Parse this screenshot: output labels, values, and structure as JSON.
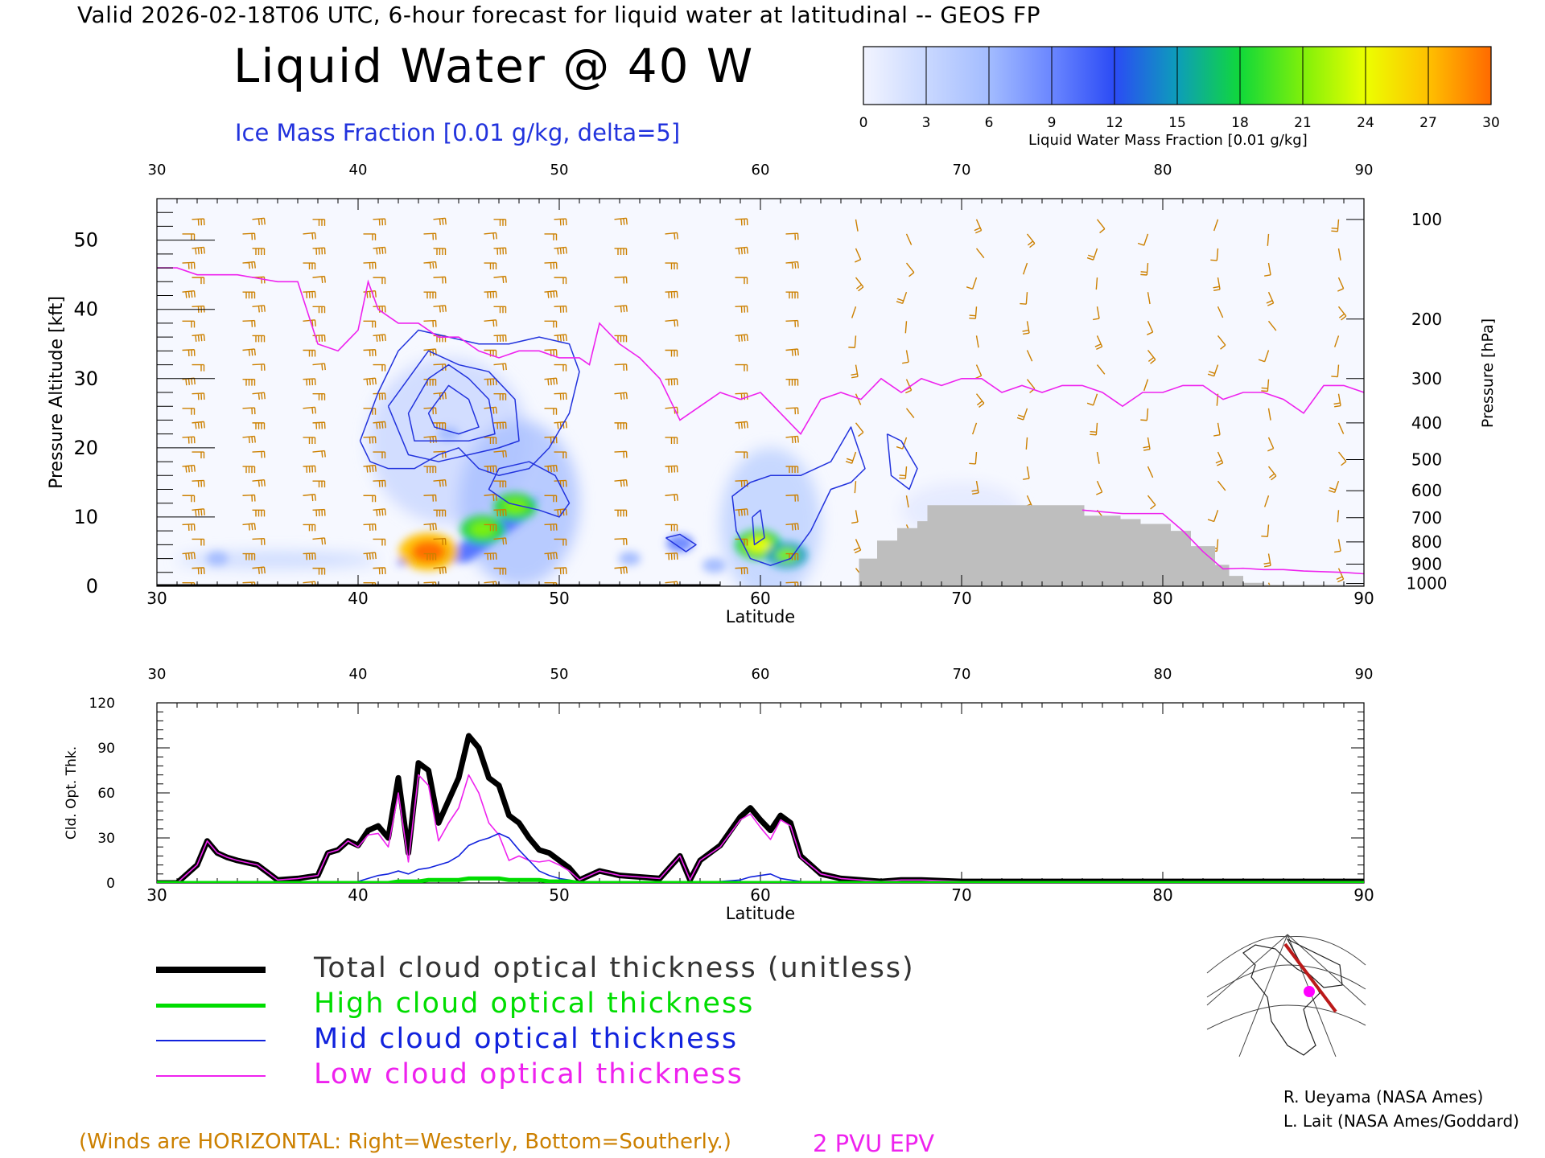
{
  "header": {
    "top_title": "Valid 2026-02-18T06 UTC, 6-hour forecast for liquid water at latitudinal -- GEOS FP",
    "main_title": "Liquid Water @ 40 W",
    "ice_label": "Ice Mass Fraction [0.01 g/kg, delta=5]"
  },
  "colors": {
    "ice": "#2233dd",
    "epv": "#ee22ee",
    "wind": "#cc8000",
    "terrain": "#bebebe",
    "total": "#000000",
    "high": "#00dd00",
    "mid": "#1122dd",
    "low": "#ee22ee"
  },
  "colorbar": {
    "ticks": [
      "0",
      "3",
      "6",
      "9",
      "12",
      "15",
      "18",
      "21",
      "24",
      "27",
      "30"
    ],
    "colors": [
      "#f2f4ff",
      "#c9d8ff",
      "#a3bcff",
      "#6a86ff",
      "#2b4bf5",
      "#0d9dba",
      "#10d83a",
      "#7ff00a",
      "#ecff00",
      "#ffc000",
      "#ff6a00"
    ],
    "label": "Liquid Water Mass Fraction [0.01 g/kg]"
  },
  "notes": {
    "winds": "(Winds are HORIZONTAL: Right=Westerly, Bottom=Southerly.)",
    "epv": "2 PVU EPV",
    "credit1": "R. Ueyama (NASA Ames)",
    "credit2": "L. Lait (NASA Ames/Goddard)"
  },
  "legend": [
    {
      "label": "Total cloud optical thickness (unitless)",
      "color": "#000000",
      "width": 8
    },
    {
      "label": "High cloud optical thickness",
      "color": "#00dd00",
      "width": 5
    },
    {
      "label": "Mid cloud optical thickness",
      "color": "#1122dd",
      "width": 2
    },
    {
      "label": "Low cloud optical thickness",
      "color": "#ee22ee",
      "width": 2
    }
  ],
  "chart_data": [
    {
      "type": "heatmap",
      "title": "Liquid Water @ 40 W",
      "xlabel": "Latitude",
      "ylabel": "Pressure Altitude [kft]",
      "y2label": "Pressure [hPa]",
      "xlim": [
        30,
        90
      ],
      "ylim": [
        0,
        56
      ],
      "xticks": [
        30,
        40,
        50,
        60,
        70,
        80,
        90
      ],
      "yticks": [
        0,
        10,
        20,
        30,
        40,
        50
      ],
      "pressure_ticks": [
        {
          "label": "100",
          "alt": 53
        },
        {
          "label": "200",
          "alt": 38.6
        },
        {
          "label": "300",
          "alt": 30
        },
        {
          "label": "400",
          "alt": 23.6
        },
        {
          "label": "500",
          "alt": 18.3
        },
        {
          "label": "600",
          "alt": 13.8
        },
        {
          "label": "700",
          "alt": 9.9
        },
        {
          "label": "800",
          "alt": 6.4
        },
        {
          "label": "900",
          "alt": 3.2
        },
        {
          "label": "1000",
          "alt": 0.4
        }
      ],
      "liquid_water_blobs": [
        {
          "lat": 43.5,
          "alt": 5.0,
          "value": 27
        },
        {
          "lat": 46.2,
          "alt": 8.2,
          "value": 18
        },
        {
          "lat": 47.8,
          "alt": 11.5,
          "value": 17
        },
        {
          "lat": 59.9,
          "alt": 6.0,
          "value": 19
        },
        {
          "lat": 61.3,
          "alt": 4.5,
          "value": 16
        },
        {
          "lat": 44.5,
          "alt": 22.0,
          "value": 5
        },
        {
          "lat": 56.0,
          "alt": 6.2,
          "value": 8
        },
        {
          "lat": 57.7,
          "alt": 3.0,
          "value": 6
        },
        {
          "lat": 33.0,
          "alt": 4.0,
          "value": 5
        },
        {
          "lat": 53.5,
          "alt": 4.0,
          "value": 5
        }
      ],
      "epv_2pvu": [
        {
          "name": "upper",
          "lat": [
            30,
            31,
            32,
            33,
            34,
            35,
            36,
            37,
            38,
            39,
            40,
            40.5,
            41,
            42,
            43,
            44,
            45,
            46,
            47,
            48,
            49,
            50,
            51,
            51.5,
            52,
            53,
            54,
            55,
            56,
            57,
            58,
            59,
            60,
            61,
            62,
            63,
            64,
            65,
            66,
            67,
            68,
            69,
            70,
            71,
            72,
            73,
            74,
            75,
            76,
            77,
            78,
            79,
            80,
            81,
            82,
            83,
            84,
            85,
            86,
            87,
            88,
            89,
            90
          ],
          "alt": [
            46,
            46,
            45,
            45,
            45,
            44.5,
            44,
            44,
            35,
            34,
            37,
            44,
            40,
            38,
            38,
            36,
            36,
            34,
            33,
            34,
            34,
            33,
            33,
            32,
            38,
            35,
            33,
            30,
            24,
            26,
            28,
            27,
            28,
            25,
            22,
            27,
            28,
            27,
            30,
            28,
            30,
            29,
            30,
            30,
            28,
            29,
            28,
            29,
            29,
            28,
            26,
            28,
            28,
            29,
            29,
            27,
            28,
            28,
            27,
            25,
            29,
            29,
            28
          ],
          "gap_after_index": 8
        },
        {
          "name": "low",
          "lat": [
            76,
            78,
            80,
            81,
            82,
            83,
            84,
            85,
            86,
            87,
            88,
            89,
            90
          ],
          "alt": [
            11,
            10.5,
            10.5,
            8,
            5,
            2.5,
            2.6,
            2.4,
            2.4,
            2.2,
            2.1,
            2.0,
            1.8
          ]
        }
      ],
      "terrain_lat_steps": [
        [
          64.9,
          4
        ],
        [
          65.8,
          6.6
        ],
        [
          66.8,
          8.4
        ],
        [
          67.8,
          9.4
        ],
        [
          68.3,
          11.7
        ],
        [
          76.1,
          10.2
        ],
        [
          77.9,
          9.7
        ],
        [
          78.9,
          9.0
        ],
        [
          80.4,
          8.0
        ],
        [
          81.4,
          5.8
        ],
        [
          82.6,
          3.1
        ],
        [
          83.3,
          1.5
        ],
        [
          84.0,
          0.5
        ],
        [
          85.0,
          0.2
        ]
      ],
      "ice_contours": [
        {
          "level": 5,
          "lat": [
            40.1,
            41.0,
            42.0,
            43.0,
            44.5,
            46.0,
            47.5,
            49.0,
            50.5,
            51.0,
            50.5,
            49.5,
            48.5,
            47.0,
            46.0,
            45.0,
            44.0,
            42.8,
            41.5,
            40.6,
            40.1
          ],
          "alt": [
            21,
            28,
            34,
            37,
            36,
            35,
            35,
            36,
            35,
            31,
            25,
            20,
            17,
            16,
            17,
            20,
            19,
            17,
            17,
            18,
            21
          ]
        },
        {
          "level": 5,
          "lat": [
            47.0,
            48.5,
            49.8,
            50.5,
            50.0,
            49.0,
            47.5,
            46.5,
            47.0
          ],
          "alt": [
            17,
            18,
            16,
            12,
            10,
            11,
            12,
            14,
            17
          ]
        },
        {
          "level": 10,
          "lat": [
            41.5,
            42.5,
            43.5,
            45.0,
            46.5,
            47.8,
            48.0,
            47.0,
            45.5,
            44.0,
            42.5,
            41.5
          ],
          "alt": [
            26,
            30,
            34,
            32,
            31,
            27,
            21,
            20,
            19,
            18,
            19,
            26
          ]
        },
        {
          "level": 15,
          "lat": [
            42.5,
            43.5,
            44.5,
            45.5,
            46.5,
            46.8,
            45.5,
            44.0,
            42.8,
            42.5
          ],
          "alt": [
            25,
            30,
            32,
            30,
            27,
            22,
            21,
            21,
            21,
            25
          ]
        },
        {
          "level": 20,
          "lat": [
            43.5,
            44.5,
            45.5,
            46.0,
            45.0,
            43.8,
            43.5
          ],
          "alt": [
            25,
            29,
            27,
            23,
            22,
            23,
            25
          ]
        },
        {
          "level": 5,
          "lat": [
            59.5,
            60.5,
            62.0,
            63.5,
            64.5,
            65.2,
            64.5,
            63.5,
            62.5,
            61.5,
            60.5,
            59.5,
            58.8,
            58.6,
            59.5
          ],
          "alt": [
            15,
            16,
            16,
            18,
            23,
            17,
            15,
            14,
            8,
            4,
            3,
            4,
            8,
            13,
            15
          ]
        },
        {
          "level": 5,
          "lat": [
            66.3,
            67.0,
            67.8,
            67.4,
            66.5,
            66.3
          ],
          "alt": [
            22,
            21,
            17,
            14,
            16,
            22
          ]
        },
        {
          "level": 5,
          "lat": [
            55.3,
            56.0,
            56.8,
            56.3,
            55.3
          ],
          "alt": [
            7,
            7.5,
            6,
            5,
            7
          ]
        },
        {
          "level": 10,
          "lat": [
            59.6,
            60.0,
            60.2,
            59.7,
            59.6
          ],
          "alt": [
            10,
            11,
            7,
            6,
            10
          ]
        }
      ]
    },
    {
      "type": "line",
      "xlabel": "Latitude",
      "ylabel": "Cld. Opt. Thk.",
      "xlim": [
        30,
        90
      ],
      "ylim": [
        0,
        120
      ],
      "xticks": [
        30,
        40,
        50,
        60,
        70,
        80,
        90
      ],
      "yticks": [
        0,
        30,
        60,
        90,
        120
      ],
      "x": [
        30,
        31,
        32,
        32.5,
        33,
        33.5,
        34,
        35,
        36,
        37,
        38,
        38.5,
        39,
        39.5,
        40,
        40.5,
        41,
        41.5,
        42,
        42.5,
        43,
        43.5,
        44,
        44.5,
        45,
        45.5,
        46,
        46.5,
        47,
        47.5,
        48,
        48.5,
        49,
        49.5,
        50,
        50.5,
        51,
        52,
        53,
        54,
        55,
        56,
        56.5,
        57,
        58,
        59,
        59.5,
        60,
        60.5,
        61,
        61.5,
        62,
        63,
        64,
        65,
        66,
        67,
        68,
        70,
        75,
        80,
        85,
        90
      ],
      "series": [
        {
          "name": "Total cloud optical thickness (unitless)",
          "values": [
            0,
            0,
            12,
            28,
            20,
            17,
            15,
            12,
            2,
            3,
            5,
            20,
            22,
            28,
            25,
            35,
            38,
            30,
            70,
            20,
            80,
            75,
            40,
            55,
            70,
            98,
            90,
            70,
            65,
            45,
            40,
            30,
            22,
            20,
            15,
            10,
            2,
            8,
            5,
            4,
            3,
            18,
            2,
            15,
            25,
            44,
            50,
            42,
            35,
            45,
            40,
            18,
            6,
            3,
            2,
            1,
            2,
            2,
            1,
            1,
            1,
            1,
            1
          ]
        },
        {
          "name": "High cloud optical thickness",
          "values": [
            0,
            0,
            0,
            0,
            0,
            0,
            0,
            0,
            0,
            0,
            0,
            0,
            0,
            0,
            0,
            0,
            0,
            0,
            1,
            1,
            1,
            2,
            2,
            2,
            2,
            3,
            3,
            3,
            3,
            2,
            2,
            2,
            2,
            1,
            1,
            1,
            0,
            0,
            0,
            0,
            0,
            0,
            0,
            0,
            0,
            0,
            0,
            0,
            0,
            0,
            0,
            0,
            0,
            0,
            0,
            0,
            0,
            0,
            0,
            0,
            0,
            0,
            0
          ]
        },
        {
          "name": "Mid cloud optical thickness",
          "values": [
            0,
            0,
            0,
            0,
            0,
            0,
            0,
            0,
            0,
            0,
            0,
            0,
            0,
            0,
            1,
            3,
            5,
            6,
            8,
            6,
            9,
            10,
            12,
            14,
            18,
            25,
            28,
            30,
            33,
            30,
            22,
            15,
            8,
            5,
            3,
            2,
            0,
            0,
            0,
            0,
            0,
            0,
            0,
            0,
            1,
            2,
            4,
            5,
            6,
            3,
            2,
            1,
            0,
            0,
            0,
            0,
            0,
            0,
            0,
            0,
            0,
            0,
            0
          ]
        },
        {
          "name": "Low cloud optical thickness",
          "values": [
            0,
            0,
            12,
            28,
            20,
            17,
            15,
            12,
            2,
            3,
            5,
            20,
            22,
            28,
            24,
            32,
            33,
            24,
            60,
            14,
            72,
            65,
            28,
            40,
            50,
            72,
            60,
            40,
            32,
            15,
            18,
            15,
            14,
            15,
            12,
            8,
            2,
            8,
            5,
            4,
            3,
            18,
            2,
            15,
            24,
            42,
            46,
            37,
            29,
            42,
            38,
            17,
            6,
            3,
            2,
            1,
            2,
            2,
            1,
            1,
            1,
            1,
            1
          ]
        }
      ]
    }
  ]
}
